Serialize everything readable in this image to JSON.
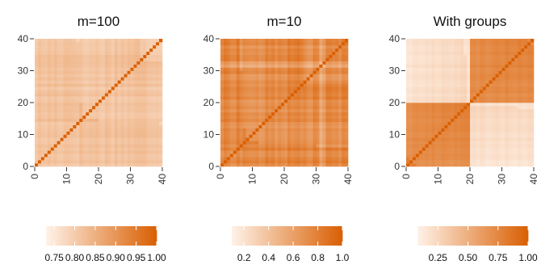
{
  "figure": {
    "colors": {
      "low": "#FFF2E8",
      "high": "#D95F02",
      "tick": "#333333"
    }
  },
  "chart_data": [
    {
      "type": "heatmap",
      "title": "m=100",
      "x_ticks": [
        "0",
        "10",
        "20",
        "30",
        "40"
      ],
      "y_ticks": [
        "0",
        "10",
        "20",
        "30",
        "40"
      ],
      "xlim": [
        0,
        40
      ],
      "ylim": [
        0,
        40
      ],
      "n": 40,
      "structure": "uniform",
      "diagonal": 1.0,
      "off_diagonal_range": [
        0.78,
        0.86
      ],
      "colorbar": {
        "ticks": [
          "0.75",
          "0.80",
          "0.85",
          "0.90",
          "0.95",
          "1.00"
        ],
        "range": [
          0.73,
          1.0
        ]
      }
    },
    {
      "type": "heatmap",
      "title": "m=10",
      "x_ticks": [
        "0",
        "10",
        "20",
        "30",
        "40"
      ],
      "y_ticks": [
        "0",
        "10",
        "20",
        "30",
        "40"
      ],
      "xlim": [
        0,
        40
      ],
      "ylim": [
        0,
        40
      ],
      "n": 40,
      "structure": "uniform",
      "diagonal": 1.0,
      "off_diagonal_range": [
        0.55,
        0.9
      ],
      "colorbar": {
        "ticks": [
          "0.2",
          "0.4",
          "0.6",
          "0.8",
          "1.0"
        ],
        "range": [
          0.1,
          1.0
        ]
      }
    },
    {
      "type": "heatmap",
      "title": "With groups",
      "x_ticks": [
        "0",
        "10",
        "20",
        "30",
        "40"
      ],
      "y_ticks": [
        "0",
        "10",
        "20",
        "30",
        "40"
      ],
      "xlim": [
        0,
        40
      ],
      "ylim": [
        0,
        40
      ],
      "n": 40,
      "structure": "two-groups",
      "group_split": 20,
      "diagonal": 1.0,
      "within_group_range": [
        0.65,
        0.85
      ],
      "between_group_range": [
        0.12,
        0.3
      ],
      "colorbar": {
        "ticks": [
          "0.25",
          "0.50",
          "0.75",
          "1.00"
        ],
        "range": [
          0.08,
          1.0
        ]
      }
    }
  ]
}
